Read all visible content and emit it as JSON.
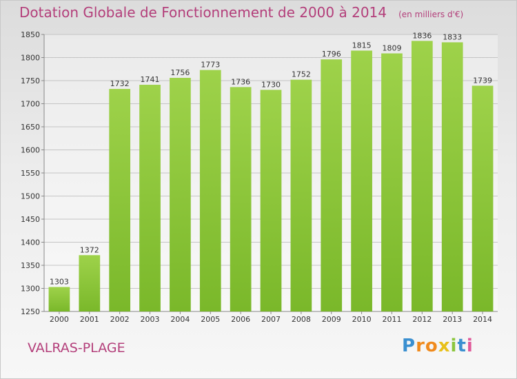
{
  "chart_data": {
    "type": "bar",
    "title": "Dotation Globale de Fonctionnement de 2000 à 2014",
    "subtitle": "(en milliers d'€)",
    "categories": [
      "2000",
      "2001",
      "2002",
      "2003",
      "2004",
      "2005",
      "2006",
      "2007",
      "2008",
      "2009",
      "2010",
      "2011",
      "2012",
      "2013",
      "2014"
    ],
    "values": [
      1303,
      1372,
      1732,
      1741,
      1756,
      1773,
      1736,
      1730,
      1752,
      1796,
      1815,
      1809,
      1836,
      1833,
      1739
    ],
    "ylim": [
      1250,
      1850
    ],
    "yticks": [
      1250,
      1300,
      1350,
      1400,
      1450,
      1500,
      1550,
      1600,
      1650,
      1700,
      1750,
      1800,
      1850
    ],
    "xlabel": "",
    "ylabel": "",
    "grid": true,
    "bar_color": "#7ab82a",
    "bar_color_light": "#9ed24a"
  },
  "footer": {
    "place": "VALRAS-PLAGE"
  },
  "logo": {
    "text": "Proxiti",
    "letters": [
      "P",
      "r",
      "o",
      "x",
      "i",
      "t",
      "i"
    ],
    "colors": [
      "#3a8fd0",
      "#f08a1c",
      "#f08a1c",
      "#e8c01a",
      "#8cc63e",
      "#3a8fd0",
      "#e05a9a"
    ]
  }
}
